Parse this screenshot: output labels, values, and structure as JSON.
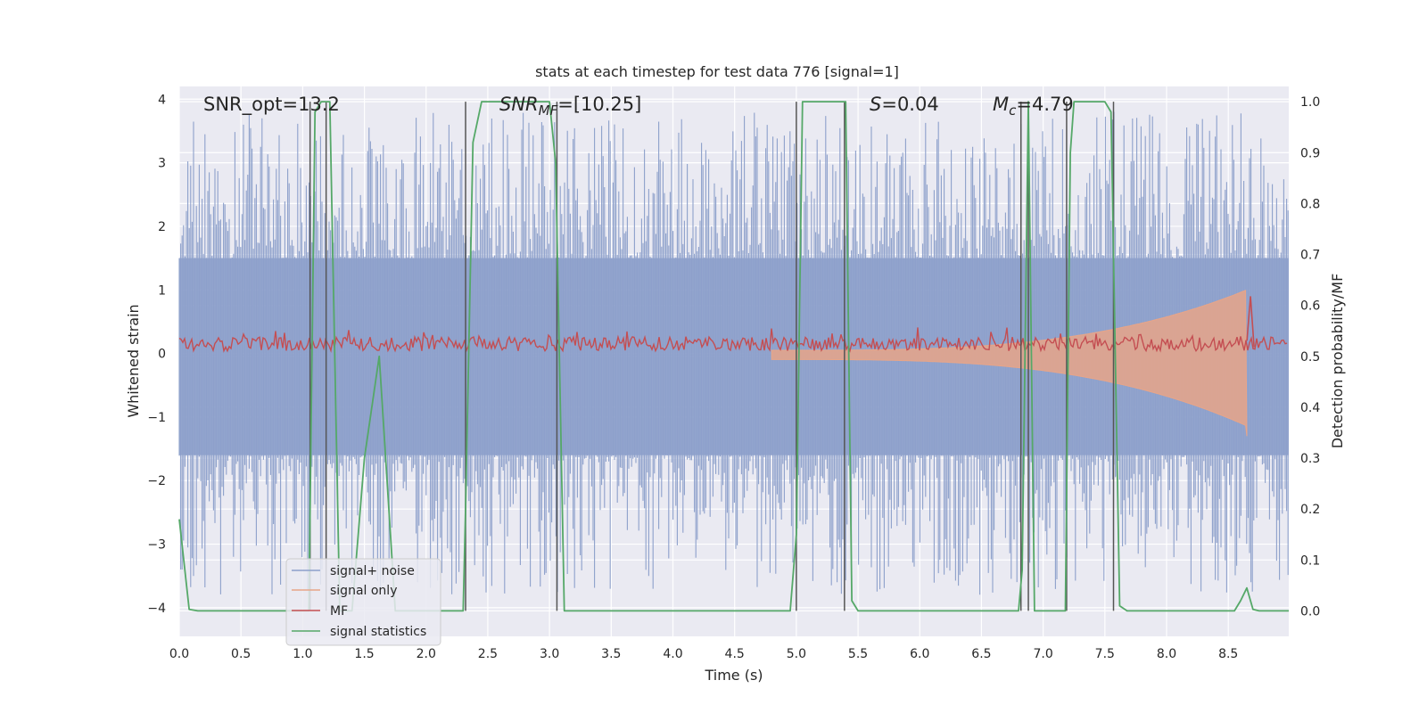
{
  "chart_data": {
    "type": "line",
    "title": "stats at each timestep for test data 776 [signal=1]",
    "xlabel": "Time (s)",
    "ylabel_left": "Whitened strain",
    "ylabel_right": "Detection probability/MF",
    "xlim": [
      0.0,
      8.99
    ],
    "ylim_left": [
      -4.45,
      4.2
    ],
    "ylim_right": [
      -0.05,
      1.03
    ],
    "xticks": [
      "0.0",
      "0.5",
      "1.0",
      "1.5",
      "2.0",
      "2.5",
      "3.0",
      "3.5",
      "4.0",
      "4.5",
      "5.0",
      "5.5",
      "6.0",
      "6.5",
      "7.0",
      "7.5",
      "8.0",
      "8.5"
    ],
    "yticks_left": [
      "4",
      "3",
      "2",
      "1",
      "0",
      "−1",
      "−2",
      "−3",
      "−4"
    ],
    "yticks_right": [
      "1.0",
      "0.9",
      "0.8",
      "0.7",
      "0.6",
      "0.5",
      "0.4",
      "0.3",
      "0.2",
      "0.1",
      "0.0"
    ],
    "grid": true,
    "legend_position": "lower-left",
    "annotations": {
      "snr_opt": "SNR_opt=13.2",
      "snr_mf_italic": "SNR",
      "snr_mf_sub": "MF",
      "snr_mf_value": "=[10.25]",
      "s_italic": "S",
      "s_value": "=0.04",
      "mc_italic": "M",
      "mc_sub": "c",
      "mc_value": "=4.79"
    },
    "series": [
      {
        "name": "signal+ noise",
        "color": "#8da0cb",
        "noise_band_left": [
          -1.6,
          1.5
        ],
        "spike_range_left": [
          -3.8,
          3.8
        ]
      },
      {
        "name": "signal only",
        "color": "#e8a588",
        "x_start": 4.8,
        "x_peak": 8.65,
        "peak_amplitude_left": 1.0,
        "min_value_left": -1.3
      },
      {
        "name": "MF",
        "color": "#c44e52",
        "mean_left": 0.15,
        "spike_x": 8.68,
        "spike_value_left": 0.9
      },
      {
        "name": "signal statistics",
        "color": "#55a868",
        "axis": "right",
        "x": [
          0.0,
          0.08,
          0.15,
          1.05,
          1.1,
          1.15,
          1.22,
          1.3,
          1.4,
          1.5,
          1.62,
          1.75,
          1.8,
          2.3,
          2.32,
          2.38,
          2.45,
          2.55,
          3.0,
          3.05,
          3.12,
          3.2,
          4.95,
          5.0,
          5.05,
          5.4,
          5.45,
          5.5,
          6.8,
          6.83,
          6.88,
          6.93,
          7.0,
          7.18,
          7.22,
          7.25,
          7.5,
          7.55,
          7.62,
          7.68,
          8.55,
          8.6,
          8.65,
          8.7,
          8.75,
          8.99
        ],
        "y": [
          0.18,
          0.003,
          0.0,
          0.0,
          0.98,
          1.0,
          1.0,
          0.0,
          0.0,
          0.3,
          0.5,
          0.0,
          0.0,
          0.0,
          0.2,
          0.92,
          1.0,
          1.0,
          1.0,
          0.88,
          0.0,
          0.0,
          0.0,
          0.15,
          1.0,
          1.0,
          0.02,
          0.0,
          0.0,
          0.08,
          1.0,
          0.0,
          0.0,
          0.0,
          0.9,
          1.0,
          1.0,
          0.98,
          0.01,
          0.0,
          0.0,
          0.02,
          0.045,
          0.003,
          0.0,
          0.0
        ]
      }
    ],
    "vertical_lines": {
      "color": "#555555",
      "x": [
        1.06,
        1.19,
        2.32,
        3.06,
        5.0,
        5.39,
        6.82,
        6.88,
        7.19,
        7.57
      ]
    }
  }
}
